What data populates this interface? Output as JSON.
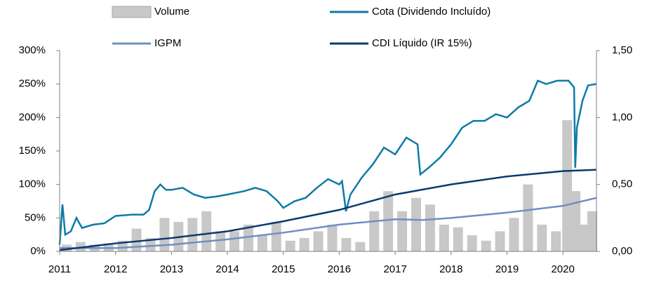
{
  "chart_data": {
    "type": "line",
    "xlim": [
      2011,
      2020.6
    ],
    "xticks": [
      2011,
      2012,
      2013,
      2014,
      2015,
      2016,
      2017,
      2018,
      2019,
      2020
    ],
    "ylim": [
      0,
      300
    ],
    "yticks": [
      {
        "value": 0,
        "label": "0%"
      },
      {
        "value": 50,
        "label": "50%"
      },
      {
        "value": 100,
        "label": "100%"
      },
      {
        "value": 150,
        "label": "150%"
      },
      {
        "value": 200,
        "label": "200%"
      },
      {
        "value": 250,
        "label": "250%"
      },
      {
        "value": 300,
        "label": "300%"
      }
    ],
    "y2lim": [
      0,
      1.5
    ],
    "y2ticks": [
      {
        "value": 0,
        "label": "0,00"
      },
      {
        "value": 0.5,
        "label": "0,50"
      },
      {
        "value": 1,
        "label": "1,00"
      },
      {
        "value": 1.5,
        "label": "1,50"
      }
    ],
    "series": [
      {
        "name": "Volume",
        "type": "bar",
        "axis": "y2",
        "color": "#c8c8c8",
        "x": [
          2011.125,
          2011.375,
          2011.625,
          2011.875,
          2012.125,
          2012.375,
          2012.625,
          2012.875,
          2013.125,
          2013.375,
          2013.625,
          2013.875,
          2014.125,
          2014.375,
          2014.625,
          2014.875,
          2015.125,
          2015.375,
          2015.625,
          2015.875,
          2016.125,
          2016.375,
          2016.625,
          2016.875,
          2017.125,
          2017.375,
          2017.625,
          2017.875,
          2018.125,
          2018.375,
          2018.625,
          2018.875,
          2019.125,
          2019.375,
          2019.625,
          2019.875,
          2020.075,
          2020.225,
          2020.375,
          2020.525
        ],
        "values": [
          0.05,
          0.07,
          0.05,
          0.06,
          0.08,
          0.17,
          0.1,
          0.25,
          0.22,
          0.25,
          0.3,
          0.15,
          0.15,
          0.2,
          0.12,
          0.22,
          0.08,
          0.1,
          0.15,
          0.2,
          0.1,
          0.07,
          0.3,
          0.45,
          0.3,
          0.4,
          0.35,
          0.2,
          0.18,
          0.12,
          0.08,
          0.15,
          0.25,
          0.5,
          0.2,
          0.15,
          0.98,
          0.45,
          0.2,
          0.3
        ]
      },
      {
        "name": "Cota (Dividendo Incluído)",
        "color": "#0e7aa8",
        "x": [
          2011.0,
          2011.05,
          2011.1,
          2011.2,
          2011.3,
          2011.4,
          2011.6,
          2011.8,
          2012.0,
          2012.3,
          2012.5,
          2012.6,
          2012.7,
          2012.8,
          2012.9,
          2013.0,
          2013.2,
          2013.4,
          2013.6,
          2013.8,
          2014.0,
          2014.3,
          2014.5,
          2014.7,
          2014.9,
          2015.0,
          2015.2,
          2015.4,
          2015.6,
          2015.8,
          2016.0,
          2016.05,
          2016.12,
          2016.2,
          2016.4,
          2016.6,
          2016.8,
          2017.0,
          2017.2,
          2017.3,
          2017.4,
          2017.45,
          2017.6,
          2017.8,
          2018.0,
          2018.2,
          2018.4,
          2018.6,
          2018.8,
          2019.0,
          2019.2,
          2019.4,
          2019.55,
          2019.7,
          2019.9,
          2020.1,
          2020.2,
          2020.22,
          2020.25,
          2020.35,
          2020.45,
          2020.6
        ],
        "values": [
          10,
          70,
          25,
          30,
          50,
          35,
          40,
          42,
          53,
          55,
          55,
          62,
          90,
          100,
          92,
          92,
          95,
          85,
          80,
          82,
          85,
          90,
          95,
          90,
          75,
          65,
          75,
          80,
          95,
          108,
          100,
          105,
          60,
          85,
          110,
          130,
          155,
          145,
          170,
          165,
          160,
          115,
          125,
          140,
          160,
          185,
          195,
          195,
          205,
          200,
          215,
          225,
          255,
          250,
          255,
          255,
          245,
          125,
          185,
          225,
          248,
          250
        ]
      },
      {
        "name": "IGPM",
        "color": "#6f8fc3",
        "x": [
          2011,
          2012,
          2013,
          2014,
          2015,
          2016,
          2017,
          2017.5,
          2018,
          2019,
          2020,
          2020.6
        ],
        "values": [
          5,
          5,
          10,
          18,
          28,
          40,
          48,
          47,
          50,
          58,
          68,
          80
        ]
      },
      {
        "name": "CDI Líquido (IR 15%)",
        "color": "#0b3a6e",
        "x": [
          2011,
          2012,
          2013,
          2014,
          2015,
          2016,
          2017,
          2018,
          2019,
          2020,
          2020.6
        ],
        "values": [
          2,
          12,
          20,
          30,
          45,
          62,
          85,
          100,
          112,
          120,
          122
        ]
      }
    ]
  }
}
